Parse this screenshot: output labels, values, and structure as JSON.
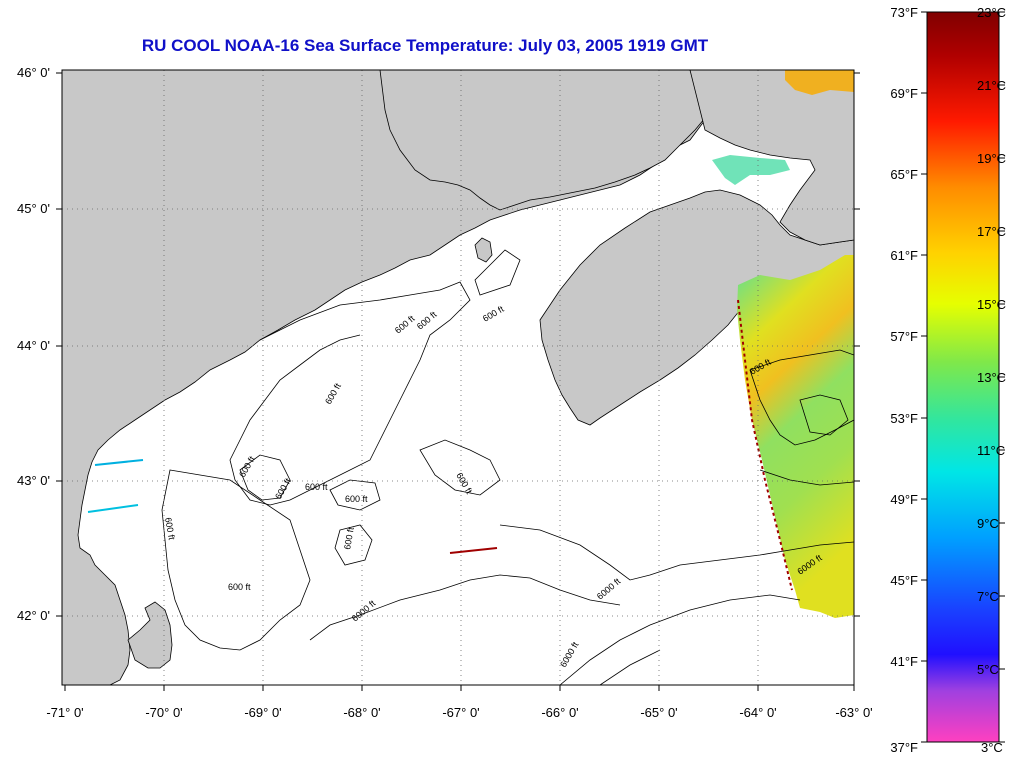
{
  "title": "RU COOL  NOAA-16  Sea Surface Temperature:  July 03, 2005 1919 GMT",
  "lat_labels": [
    "46° 0'",
    "45° 0'",
    "44° 0'",
    "43° 0'",
    "42° 0'"
  ],
  "lon_labels": [
    "-71° 0'",
    "-70° 0'",
    "-69° 0'",
    "-68° 0'",
    "-67° 0'",
    "-66° 0'",
    "-65° 0'",
    "-64° 0'",
    "-63° 0'"
  ],
  "depth_labels": [
    "600 ft",
    "600 ft",
    "600 ft",
    "600 ft",
    "600 ft",
    "600 ft",
    "600 ft",
    "600 ft",
    "600 ft",
    "600 ft",
    "600 ft",
    "600 ft",
    "6000 ft",
    "6000 ft",
    "600 ft",
    "6000 ft",
    "6000 ft"
  ],
  "colorbar": {
    "fahrenheit": [
      "73°F",
      "69°F",
      "65°F",
      "61°F",
      "57°F",
      "53°F",
      "49°F",
      "45°F",
      "41°F",
      "37°F"
    ],
    "celsius": [
      "23°C",
      "21°C",
      "19°C",
      "17°C",
      "15°C",
      "13°C",
      "11°C",
      "9°C",
      "7°C",
      "5°C",
      "3°C"
    ]
  },
  "colors": {
    "land": "#c8c8c8",
    "title": "#1010c8",
    "water": "#ffffff"
  }
}
